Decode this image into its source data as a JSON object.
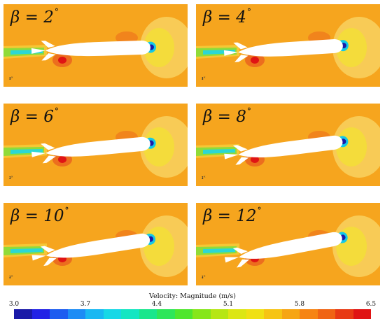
{
  "panels": [
    {
      "beta_label": "β = 2",
      "beta_deg": 2
    },
    {
      "beta_label": "β = 4",
      "beta_deg": 4
    },
    {
      "beta_label": "β = 6",
      "beta_deg": 6
    },
    {
      "beta_label": "β = 8",
      "beta_deg": 8
    },
    {
      "beta_label": "β = 10",
      "beta_deg": 10
    },
    {
      "beta_label": "β = 12",
      "beta_deg": 12
    }
  ],
  "degree_symbol": "°",
  "colorbar": {
    "title": "Velocity: Magnitude (m/s)",
    "ticks": [
      "3.0",
      "3.7",
      "4.4",
      "5.1",
      "5.8",
      "6.5"
    ],
    "colors": [
      "#1a1aa8",
      "#2222e6",
      "#1c5cf0",
      "#1c8cf5",
      "#19b8f2",
      "#17d8e6",
      "#14e6c2",
      "#19e68c",
      "#2ee65a",
      "#4fe62e",
      "#86e61a",
      "#b6e614",
      "#dce614",
      "#f0e014",
      "#f6c414",
      "#f6a514",
      "#f68414",
      "#f06414",
      "#e83a14",
      "#e01414"
    ]
  },
  "axes_indicator_text": "ᵻˣ"
}
